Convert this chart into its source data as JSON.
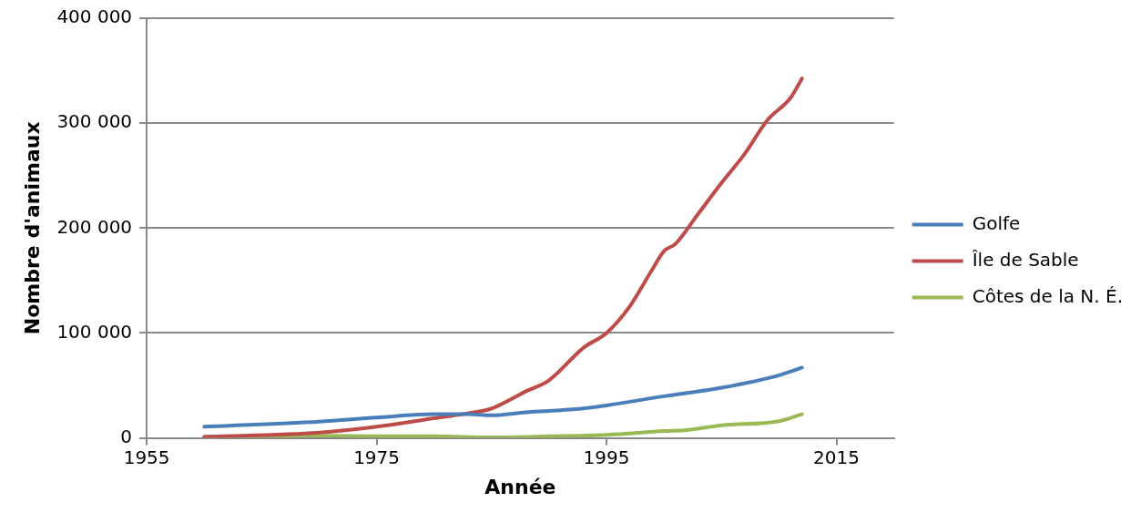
{
  "chart_data": {
    "type": "line",
    "xlabel": "Année",
    "ylabel": "Nombre d'animaux",
    "xlim": [
      1955,
      2020
    ],
    "xticks": [
      1955,
      1975,
      1995,
      2015
    ],
    "ylim": [
      0,
      400000
    ],
    "yticks": [
      {
        "value": 0,
        "label": "0"
      },
      {
        "value": 100000,
        "label": "100 000"
      },
      {
        "value": 200000,
        "label": "200 000"
      },
      {
        "value": 300000,
        "label": "300 000"
      },
      {
        "value": 400000,
        "label": "400 000"
      }
    ],
    "grid": "y",
    "legend": "right",
    "marker": "none",
    "line_style": "solid",
    "series": [
      {
        "name": "Golfe",
        "color": "#4a7ebb",
        "x": [
          1960,
          1970,
          1975,
          1980,
          1983,
          1985,
          1988,
          1990,
          1993,
          1995,
          2000,
          2005,
          2010,
          2012
        ],
        "values": [
          10700,
          15500,
          19400,
          22600,
          22600,
          21500,
          24500,
          25700,
          28000,
          31000,
          39700,
          47800,
          59700,
          67000
        ]
      },
      {
        "name": "Île de Sable",
        "color": "#be4b48",
        "x": [
          1960,
          1970,
          1975,
          1980,
          1983,
          1985,
          1988,
          1990,
          1993,
          1995,
          1997,
          1999,
          2000,
          2001,
          2003,
          2005,
          2007,
          2009,
          2011,
          2012
        ],
        "values": [
          1000,
          5000,
          10700,
          18700,
          23500,
          28000,
          44500,
          55000,
          86000,
          100000,
          125000,
          161000,
          178000,
          185000,
          214000,
          243000,
          270500,
          303000,
          324000,
          342500
        ]
      },
      {
        "name": "Côtes de la N. É.",
        "color": "#98b954",
        "x": [
          1960,
          1970,
          1975,
          1980,
          1985,
          1990,
          1995,
          2000,
          2002,
          2005,
          2010,
          2012
        ],
        "values": [
          1000,
          2000,
          1500,
          1500,
          500,
          1500,
          3000,
          6500,
          7500,
          12000,
          16000,
          22600
        ]
      }
    ]
  }
}
